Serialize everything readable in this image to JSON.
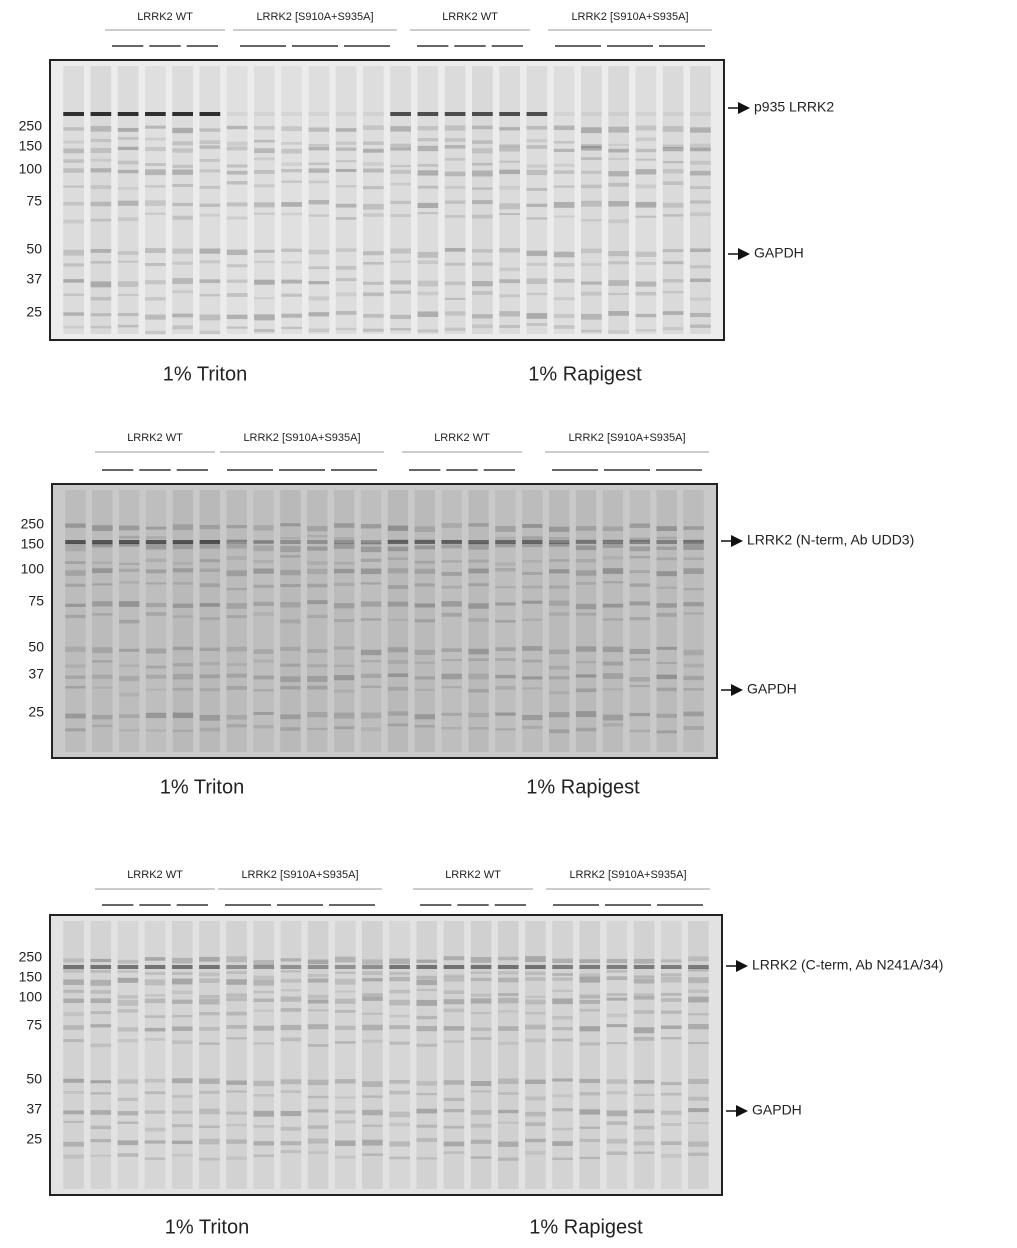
{
  "panels": [
    {
      "groups": [
        "LRRK2 WT",
        "LRRK2 [S910A+S935A]",
        "LRRK2 WT",
        "LRRK2 [S910A+S935A]"
      ],
      "markers": [
        250,
        150,
        100,
        75,
        50,
        37,
        25
      ],
      "arrows": [
        "p935 LRRK2",
        "GAPDH"
      ],
      "conditions": [
        "1% Triton",
        "1% Rapigest"
      ]
    },
    {
      "groups": [
        "LRRK2 WT",
        "LRRK2 [S910A+S935A]",
        "LRRK2 WT",
        "LRRK2 [S910A+S935A]"
      ],
      "markers": [
        250,
        150,
        100,
        75,
        50,
        37,
        25
      ],
      "arrows": [
        "LRRK2 (N-term, Ab UDD3)",
        "GAPDH"
      ],
      "conditions": [
        "1% Triton",
        "1% Rapigest"
      ]
    },
    {
      "groups": [
        "LRRK2 WT",
        "LRRK2 [S910A+S935A]",
        "LRRK2 WT",
        "LRRK2 [S910A+S935A]"
      ],
      "markers": [
        250,
        150,
        100,
        75,
        50,
        37,
        25
      ],
      "arrows": [
        "LRRK2 (C-term, Ab N241A/34)",
        "GAPDH"
      ],
      "conditions": [
        "1% Triton",
        "1% Rapigest"
      ]
    }
  ]
}
